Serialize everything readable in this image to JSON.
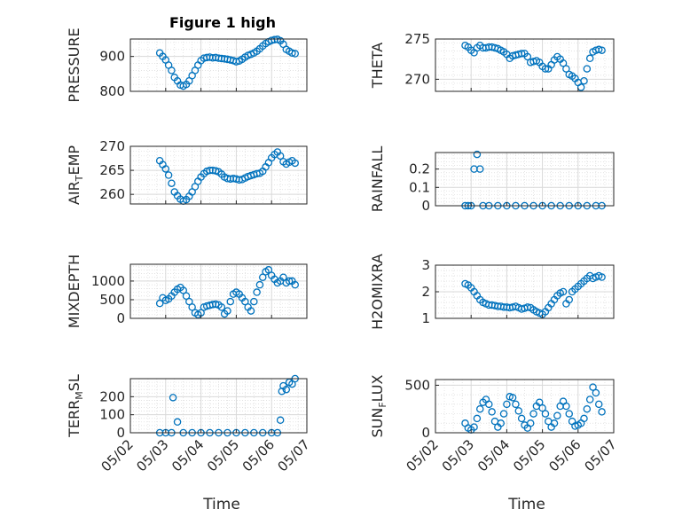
{
  "figure": {
    "title": "Figure 1 high",
    "xlabel": "Time",
    "x_ticks": [
      "05/02",
      "05/03",
      "05/04",
      "05/05",
      "05/06",
      "05/07"
    ]
  },
  "colors": {
    "marker": "#0072BD",
    "grid": "#d9d9d9",
    "axis": "#262626"
  },
  "chart_data": [
    {
      "type": "scatter",
      "name": "PRESSURE",
      "ylabel": "PRESSURE",
      "title": "Figure 1 high",
      "ylim": [
        800,
        950
      ],
      "yticks": [
        800,
        900
      ],
      "grid": true,
      "x": [
        "05/02 20:00",
        "05/02 22:00",
        "05/03 00:00",
        "05/03 02:00",
        "05/03 04:00",
        "05/03 06:00",
        "05/03 08:00",
        "05/03 10:00",
        "05/03 12:00",
        "05/03 14:00",
        "05/03 16:00",
        "05/03 18:00",
        "05/03 20:00",
        "05/03 22:00",
        "05/04 00:00",
        "05/04 02:00",
        "05/04 04:00",
        "05/04 06:00",
        "05/04 08:00",
        "05/04 10:00",
        "05/04 12:00",
        "05/04 14:00",
        "05/04 16:00",
        "05/04 18:00",
        "05/04 20:00",
        "05/04 22:00",
        "05/05 00:00",
        "05/05 02:00",
        "05/05 04:00",
        "05/05 06:00",
        "05/05 08:00",
        "05/05 10:00",
        "05/05 12:00",
        "05/05 14:00",
        "05/05 16:00",
        "05/05 18:00",
        "05/05 20:00",
        "05/05 22:00",
        "05/06 00:00",
        "05/06 02:00",
        "05/06 04:00",
        "05/06 06:00",
        "05/06 08:00",
        "05/06 10:00",
        "05/06 12:00",
        "05/06 14:00",
        "05/06 16:00"
      ],
      "y": [
        910,
        900,
        890,
        875,
        860,
        840,
        830,
        818,
        815,
        820,
        830,
        845,
        860,
        875,
        888,
        895,
        897,
        898,
        896,
        897,
        895,
        894,
        893,
        892,
        890,
        888,
        885,
        887,
        892,
        898,
        903,
        906,
        910,
        915,
        922,
        930,
        937,
        942,
        946,
        948,
        949,
        945,
        935,
        920,
        915,
        910,
        908
      ]
    },
    {
      "type": "scatter",
      "name": "THETA",
      "ylabel": "THETA",
      "ylim": [
        268.5,
        275
      ],
      "yticks": [
        270,
        275
      ],
      "grid": true,
      "x": [
        "05/02 20:00",
        "05/02 22:00",
        "05/03 00:00",
        "05/03 02:00",
        "05/03 04:00",
        "05/03 06:00",
        "05/03 08:00",
        "05/03 10:00",
        "05/03 12:00",
        "05/03 14:00",
        "05/03 16:00",
        "05/03 18:00",
        "05/03 20:00",
        "05/03 22:00",
        "05/04 00:00",
        "05/04 02:00",
        "05/04 04:00",
        "05/04 06:00",
        "05/04 08:00",
        "05/04 10:00",
        "05/04 12:00",
        "05/04 14:00",
        "05/04 16:00",
        "05/04 18:00",
        "05/04 20:00",
        "05/04 22:00",
        "05/05 00:00",
        "05/05 02:00",
        "05/05 04:00",
        "05/05 06:00",
        "05/05 08:00",
        "05/05 10:00",
        "05/05 12:00",
        "05/05 14:00",
        "05/05 16:00",
        "05/05 18:00",
        "05/05 20:00",
        "05/05 22:00",
        "05/06 00:00",
        "05/06 02:00",
        "05/06 04:00",
        "05/06 06:00",
        "05/06 08:00",
        "05/06 10:00",
        "05/06 12:00",
        "05/06 14:00",
        "05/06 16:00"
      ],
      "y": [
        274.2,
        274.0,
        273.6,
        273.3,
        273.9,
        274.2,
        273.9,
        273.9,
        274.0,
        274.0,
        273.9,
        273.8,
        273.6,
        273.4,
        273.1,
        272.6,
        272.9,
        273.0,
        273.1,
        273.2,
        273.2,
        272.8,
        272.1,
        272.2,
        272.3,
        272.1,
        271.6,
        271.3,
        271.3,
        271.8,
        272.4,
        272.8,
        272.5,
        272.0,
        271.3,
        270.6,
        270.4,
        270.1,
        269.6,
        269.0,
        269.8,
        271.3,
        272.6,
        273.4,
        273.6,
        273.7,
        273.6
      ]
    },
    {
      "type": "scatter",
      "name": "AIR_TEMP",
      "ylabel": "AIR_TEMP",
      "ylim": [
        258,
        270
      ],
      "yticks": [
        260,
        265,
        270
      ],
      "grid": true,
      "x": [
        "05/02 20:00",
        "05/02 22:00",
        "05/03 00:00",
        "05/03 02:00",
        "05/03 04:00",
        "05/03 06:00",
        "05/03 08:00",
        "05/03 10:00",
        "05/03 12:00",
        "05/03 14:00",
        "05/03 16:00",
        "05/03 18:00",
        "05/03 20:00",
        "05/03 22:00",
        "05/04 00:00",
        "05/04 02:00",
        "05/04 04:00",
        "05/04 06:00",
        "05/04 08:00",
        "05/04 10:00",
        "05/04 12:00",
        "05/04 14:00",
        "05/04 16:00",
        "05/04 18:00",
        "05/04 20:00",
        "05/04 22:00",
        "05/05 00:00",
        "05/05 02:00",
        "05/05 04:00",
        "05/05 06:00",
        "05/05 08:00",
        "05/05 10:00",
        "05/05 12:00",
        "05/05 14:00",
        "05/05 16:00",
        "05/05 18:00",
        "05/05 20:00",
        "05/05 22:00",
        "05/06 00:00",
        "05/06 02:00",
        "05/06 04:00",
        "05/06 06:00",
        "05/06 08:00",
        "05/06 10:00",
        "05/06 12:00",
        "05/06 14:00",
        "05/06 16:00"
      ],
      "y": [
        267.0,
        266.2,
        265.3,
        264.0,
        262.3,
        260.5,
        259.7,
        259.0,
        258.6,
        258.9,
        259.6,
        260.5,
        261.6,
        262.7,
        263.6,
        264.3,
        264.8,
        265.0,
        265.0,
        264.9,
        264.7,
        264.2,
        263.6,
        263.3,
        263.2,
        263.3,
        263.2,
        263.0,
        263.1,
        263.4,
        263.7,
        263.9,
        264.1,
        264.3,
        264.4,
        264.8,
        265.7,
        266.6,
        267.6,
        268.3,
        268.8,
        268.0,
        266.8,
        266.3,
        266.7,
        267.0,
        266.5
      ]
    },
    {
      "type": "scatter",
      "name": "RAINFALL",
      "ylabel": "RAINFALL",
      "ylim": [
        0,
        0.29
      ],
      "yticks": [
        0,
        0.1,
        0.2
      ],
      "grid": true,
      "x": [
        "05/02 20:00",
        "05/02 22:00",
        "05/03 00:00",
        "05/03 02:00",
        "05/03 04:00",
        "05/03 06:00",
        "05/03 08:00",
        "05/03 12:00",
        "05/03 18:00",
        "05/04 00:00",
        "05/04 06:00",
        "05/04 12:00",
        "05/04 18:00",
        "05/05 00:00",
        "05/05 06:00",
        "05/05 12:00",
        "05/05 18:00",
        "05/06 00:00",
        "05/06 06:00",
        "05/06 12:00",
        "05/06 16:00"
      ],
      "y": [
        0,
        0,
        0,
        0.2,
        0.28,
        0.2,
        0,
        0,
        0,
        0,
        0,
        0,
        0,
        0,
        0,
        0,
        0,
        0,
        0,
        0,
        0
      ]
    },
    {
      "type": "scatter",
      "name": "MIXDEPTH",
      "ylabel": "MIXDEPTH",
      "ylim": [
        0,
        1450
      ],
      "yticks": [
        0,
        500,
        1000
      ],
      "grid": true,
      "x": [
        "05/02 20:00",
        "05/02 22:00",
        "05/03 00:00",
        "05/03 02:00",
        "05/03 04:00",
        "05/03 06:00",
        "05/03 08:00",
        "05/03 10:00",
        "05/03 12:00",
        "05/03 14:00",
        "05/03 16:00",
        "05/03 18:00",
        "05/03 20:00",
        "05/03 22:00",
        "05/04 00:00",
        "05/04 02:00",
        "05/04 04:00",
        "05/04 06:00",
        "05/04 08:00",
        "05/04 10:00",
        "05/04 12:00",
        "05/04 14:00",
        "05/04 16:00",
        "05/04 18:00",
        "05/04 20:00",
        "05/04 22:00",
        "05/05 00:00",
        "05/05 02:00",
        "05/05 04:00",
        "05/05 06:00",
        "05/05 08:00",
        "05/05 10:00",
        "05/05 12:00",
        "05/05 14:00",
        "05/05 16:00",
        "05/05 18:00",
        "05/05 20:00",
        "05/05 22:00",
        "05/06 00:00",
        "05/06 02:00",
        "05/06 04:00",
        "05/06 06:00",
        "05/06 08:00",
        "05/06 10:00",
        "05/06 12:00",
        "05/06 14:00",
        "05/06 16:00"
      ],
      "y": [
        400,
        550,
        480,
        520,
        600,
        700,
        780,
        830,
        750,
        600,
        450,
        300,
        150,
        100,
        150,
        300,
        330,
        350,
        370,
        380,
        360,
        300,
        120,
        200,
        450,
        650,
        700,
        650,
        550,
        450,
        300,
        200,
        450,
        700,
        900,
        1100,
        1250,
        1300,
        1150,
        1050,
        950,
        1000,
        1100,
        950,
        1000,
        1000,
        900
      ]
    },
    {
      "type": "scatter",
      "name": "H2OMIXRA",
      "ylabel": "H2OMIXRA",
      "ylim": [
        1,
        3
      ],
      "yticks": [
        1,
        2,
        3
      ],
      "grid": true,
      "x": [
        "05/02 20:00",
        "05/02 22:00",
        "05/03 00:00",
        "05/03 02:00",
        "05/03 04:00",
        "05/03 06:00",
        "05/03 08:00",
        "05/03 10:00",
        "05/03 12:00",
        "05/03 14:00",
        "05/03 16:00",
        "05/03 18:00",
        "05/03 20:00",
        "05/03 22:00",
        "05/04 00:00",
        "05/04 02:00",
        "05/04 04:00",
        "05/04 06:00",
        "05/04 08:00",
        "05/04 10:00",
        "05/04 12:00",
        "05/04 14:00",
        "05/04 16:00",
        "05/04 18:00",
        "05/04 20:00",
        "05/04 22:00",
        "05/05 00:00",
        "05/05 02:00",
        "05/05 04:00",
        "05/05 06:00",
        "05/05 08:00",
        "05/05 10:00",
        "05/05 12:00",
        "05/05 14:00",
        "05/05 16:00",
        "05/05 18:00",
        "05/05 20:00",
        "05/05 22:00",
        "05/06 00:00",
        "05/06 02:00",
        "05/06 04:00",
        "05/06 06:00",
        "05/06 08:00",
        "05/06 10:00",
        "05/06 12:00",
        "05/06 14:00",
        "05/06 16:00"
      ],
      "y": [
        2.3,
        2.25,
        2.15,
        2.0,
        1.85,
        1.7,
        1.6,
        1.55,
        1.5,
        1.5,
        1.48,
        1.45,
        1.45,
        1.42,
        1.42,
        1.4,
        1.42,
        1.45,
        1.4,
        1.35,
        1.38,
        1.42,
        1.4,
        1.32,
        1.25,
        1.2,
        1.15,
        1.25,
        1.4,
        1.55,
        1.7,
        1.85,
        1.95,
        2.0,
        1.55,
        1.7,
        2.0,
        2.1,
        2.2,
        2.3,
        2.4,
        2.5,
        2.6,
        2.5,
        2.55,
        2.6,
        2.55
      ]
    },
    {
      "type": "scatter",
      "name": "TERR_MSL",
      "ylabel": "TERR_MSL",
      "ylim": [
        0,
        300
      ],
      "yticks": [
        0,
        100,
        200
      ],
      "grid": true,
      "x": [
        "05/02 20:00",
        "05/03 00:00",
        "05/03 04:00",
        "05/03 05:00",
        "05/03 08:00",
        "05/03 12:00",
        "05/03 18:00",
        "05/04 00:00",
        "05/04 06:00",
        "05/04 12:00",
        "05/04 18:00",
        "05/05 00:00",
        "05/05 06:00",
        "05/05 12:00",
        "05/05 18:00",
        "05/06 00:00",
        "05/06 04:00",
        "05/06 06:00",
        "05/06 07:00",
        "05/06 08:00",
        "05/06 10:00",
        "05/06 12:00",
        "05/06 14:00",
        "05/06 16:00"
      ],
      "y": [
        0,
        0,
        0,
        195,
        60,
        0,
        0,
        0,
        0,
        0,
        0,
        0,
        0,
        0,
        0,
        0,
        0,
        70,
        230,
        260,
        240,
        280,
        270,
        300
      ]
    },
    {
      "type": "scatter",
      "name": "SUN_FLUX",
      "ylabel": "SUN_FLUX",
      "ylim": [
        0,
        560
      ],
      "yticks": [
        0,
        500
      ],
      "grid": true,
      "x": [
        "05/02 20:00",
        "05/02 22:00",
        "05/03 00:00",
        "05/03 02:00",
        "05/03 04:00",
        "05/03 06:00",
        "05/03 08:00",
        "05/03 10:00",
        "05/03 12:00",
        "05/03 14:00",
        "05/03 16:00",
        "05/03 18:00",
        "05/03 20:00",
        "05/03 22:00",
        "05/04 00:00",
        "05/04 02:00",
        "05/04 04:00",
        "05/04 06:00",
        "05/04 08:00",
        "05/04 10:00",
        "05/04 12:00",
        "05/04 14:00",
        "05/04 16:00",
        "05/04 18:00",
        "05/04 20:00",
        "05/04 22:00",
        "05/05 00:00",
        "05/05 02:00",
        "05/05 04:00",
        "05/05 06:00",
        "05/05 08:00",
        "05/05 10:00",
        "05/05 12:00",
        "05/05 14:00",
        "05/05 16:00",
        "05/05 18:00",
        "05/05 20:00",
        "05/05 22:00",
        "05/06 00:00",
        "05/06 02:00",
        "05/06 04:00",
        "05/06 06:00",
        "05/06 08:00",
        "05/06 10:00",
        "05/06 12:00",
        "05/06 14:00",
        "05/06 16:00"
      ],
      "y": [
        100,
        50,
        30,
        60,
        150,
        250,
        320,
        350,
        300,
        220,
        120,
        60,
        100,
        200,
        300,
        380,
        370,
        300,
        230,
        150,
        80,
        50,
        100,
        200,
        280,
        320,
        260,
        200,
        120,
        60,
        100,
        180,
        280,
        330,
        280,
        200,
        120,
        70,
        80,
        100,
        150,
        250,
        350,
        480,
        420,
        300,
        220
      ]
    }
  ]
}
